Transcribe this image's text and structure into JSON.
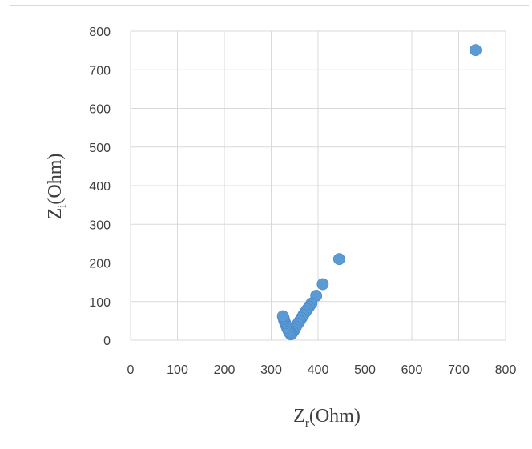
{
  "chart_data": {
    "type": "scatter",
    "title": "",
    "xlabel_main": "Z",
    "xlabel_sub": "r",
    "xlabel_unit": "(Ohm)",
    "ylabel_main": "Z",
    "ylabel_sub": "i",
    "ylabel_unit": "(Ohm)",
    "xlim": [
      0,
      800
    ],
    "ylim": [
      0,
      800
    ],
    "xticks": [
      "0",
      "100",
      "200",
      "300",
      "400",
      "500",
      "600",
      "700",
      "800"
    ],
    "yticks": [
      "0",
      "100",
      "200",
      "300",
      "400",
      "500",
      "600",
      "700",
      "800"
    ],
    "grid": true,
    "legend": "none",
    "marker_color": "#5b9bd5",
    "points": [
      [
        736,
        751
      ],
      [
        445,
        210
      ],
      [
        410,
        145
      ],
      [
        396,
        115
      ],
      [
        386,
        95
      ],
      [
        381,
        87
      ],
      [
        377,
        80
      ],
      [
        373,
        73
      ],
      [
        369,
        66
      ],
      [
        365,
        58
      ],
      [
        361,
        50
      ],
      [
        357,
        43
      ],
      [
        353,
        35
      ],
      [
        350,
        28
      ],
      [
        347,
        22
      ],
      [
        344,
        17
      ],
      [
        342,
        15
      ],
      [
        340,
        18
      ],
      [
        338,
        22
      ],
      [
        336,
        27
      ],
      [
        334,
        32
      ],
      [
        332,
        38
      ],
      [
        330,
        44
      ],
      [
        328,
        50
      ],
      [
        327,
        55
      ],
      [
        326,
        59
      ],
      [
        325,
        62
      ]
    ]
  }
}
